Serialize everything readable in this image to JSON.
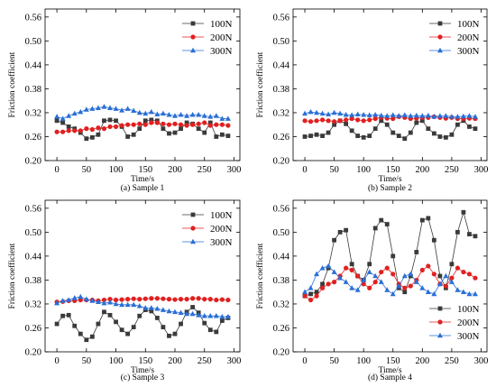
{
  "chart_data": [
    {
      "type": "line",
      "caption": "(a) Sample 1",
      "xlabel": "Time/s",
      "ylabel": "Friction coefficient",
      "xlim": [
        -20,
        310
      ],
      "ylim": [
        0.2,
        0.58
      ],
      "xticks": [
        0,
        50,
        100,
        150,
        200,
        250,
        300
      ],
      "yticks": [
        0.2,
        0.26,
        0.32,
        0.38,
        0.44,
        0.5,
        0.56
      ],
      "legend_position": "top-right",
      "x": [
        0,
        10,
        20,
        30,
        40,
        50,
        60,
        70,
        80,
        90,
        100,
        110,
        120,
        130,
        140,
        150,
        160,
        170,
        180,
        190,
        200,
        210,
        220,
        230,
        240,
        250,
        260,
        270,
        280,
        290
      ],
      "series": [
        {
          "name": "100N",
          "color": "#3a3a3a",
          "marker": "square",
          "values": [
            0.3,
            0.295,
            0.285,
            0.28,
            0.27,
            0.255,
            0.258,
            0.265,
            0.3,
            0.302,
            0.3,
            0.285,
            0.26,
            0.265,
            0.28,
            0.3,
            0.302,
            0.3,
            0.28,
            0.268,
            0.27,
            0.28,
            0.295,
            0.292,
            0.28,
            0.27,
            0.295,
            0.26,
            0.265,
            0.262
          ]
        },
        {
          "name": "200N",
          "color": "#e02020",
          "marker": "circle",
          "values": [
            0.272,
            0.272,
            0.275,
            0.275,
            0.275,
            0.28,
            0.278,
            0.282,
            0.28,
            0.285,
            0.285,
            0.288,
            0.29,
            0.29,
            0.292,
            0.29,
            0.295,
            0.295,
            0.292,
            0.29,
            0.292,
            0.29,
            0.288,
            0.29,
            0.292,
            0.295,
            0.288,
            0.29,
            0.29,
            0.288
          ]
        },
        {
          "name": "300N",
          "color": "#2a6fd6",
          "marker": "triangle",
          "values": [
            0.31,
            0.305,
            0.312,
            0.318,
            0.322,
            0.328,
            0.33,
            0.332,
            0.335,
            0.332,
            0.33,
            0.326,
            0.33,
            0.325,
            0.32,
            0.318,
            0.322,
            0.316,
            0.318,
            0.315,
            0.312,
            0.315,
            0.312,
            0.315,
            0.315,
            0.312,
            0.31,
            0.312,
            0.305,
            0.305
          ]
        }
      ]
    },
    {
      "type": "line",
      "caption": "(b) Sample 2",
      "xlabel": "Time/s",
      "ylabel": "Friction coefficient",
      "xlim": [
        -20,
        310
      ],
      "ylim": [
        0.2,
        0.58
      ],
      "xticks": [
        0,
        50,
        100,
        150,
        200,
        250,
        300
      ],
      "yticks": [
        0.2,
        0.26,
        0.32,
        0.38,
        0.44,
        0.5,
        0.56
      ],
      "legend_position": "top-right",
      "x": [
        0,
        10,
        20,
        30,
        40,
        50,
        60,
        70,
        80,
        90,
        100,
        110,
        120,
        130,
        140,
        150,
        160,
        170,
        180,
        190,
        200,
        210,
        220,
        230,
        240,
        250,
        260,
        270,
        280,
        290
      ],
      "series": [
        {
          "name": "100N",
          "color": "#3a3a3a",
          "marker": "square",
          "values": [
            0.26,
            0.262,
            0.265,
            0.262,
            0.27,
            0.29,
            0.3,
            0.292,
            0.275,
            0.262,
            0.258,
            0.262,
            0.28,
            0.3,
            0.29,
            0.27,
            0.262,
            0.255,
            0.27,
            0.295,
            0.3,
            0.28,
            0.268,
            0.26,
            0.258,
            0.265,
            0.29,
            0.3,
            0.285,
            0.28
          ]
        },
        {
          "name": "200N",
          "color": "#e02020",
          "marker": "circle",
          "values": [
            0.3,
            0.298,
            0.3,
            0.302,
            0.3,
            0.298,
            0.3,
            0.302,
            0.305,
            0.302,
            0.3,
            0.302,
            0.305,
            0.308,
            0.306,
            0.305,
            0.31,
            0.308,
            0.305,
            0.306,
            0.308,
            0.308,
            0.31,
            0.308,
            0.306,
            0.308,
            0.305,
            0.305,
            0.306,
            0.305
          ]
        },
        {
          "name": "300N",
          "color": "#2a6fd6",
          "marker": "triangle",
          "values": [
            0.318,
            0.322,
            0.32,
            0.318,
            0.316,
            0.32,
            0.318,
            0.315,
            0.314,
            0.316,
            0.315,
            0.314,
            0.315,
            0.313,
            0.312,
            0.314,
            0.312,
            0.314,
            0.312,
            0.313,
            0.312,
            0.313,
            0.31,
            0.312,
            0.312,
            0.31,
            0.31,
            0.311,
            0.312,
            0.31
          ]
        }
      ]
    },
    {
      "type": "line",
      "caption": "(c) Sample 3",
      "xlabel": "Time/s",
      "ylabel": "Friction coefficient",
      "xlim": [
        -20,
        310
      ],
      "ylim": [
        0.2,
        0.58
      ],
      "xticks": [
        0,
        50,
        100,
        150,
        200,
        250,
        300
      ],
      "yticks": [
        0.2,
        0.26,
        0.32,
        0.38,
        0.44,
        0.5,
        0.56
      ],
      "legend_position": "top-right",
      "x": [
        0,
        10,
        20,
        30,
        40,
        50,
        60,
        70,
        80,
        90,
        100,
        110,
        120,
        130,
        140,
        150,
        160,
        170,
        180,
        190,
        200,
        210,
        220,
        230,
        240,
        250,
        260,
        270,
        280,
        290
      ],
      "series": [
        {
          "name": "100N",
          "color": "#3a3a3a",
          "marker": "square",
          "values": [
            0.27,
            0.29,
            0.292,
            0.265,
            0.245,
            0.23,
            0.238,
            0.27,
            0.3,
            0.292,
            0.275,
            0.255,
            0.245,
            0.262,
            0.29,
            0.305,
            0.302,
            0.285,
            0.262,
            0.24,
            0.245,
            0.27,
            0.3,
            0.312,
            0.298,
            0.272,
            0.255,
            0.25,
            0.278,
            0.285
          ]
        },
        {
          "name": "200N",
          "color": "#e02020",
          "marker": "circle",
          "values": [
            0.325,
            0.326,
            0.328,
            0.328,
            0.33,
            0.33,
            0.33,
            0.328,
            0.33,
            0.332,
            0.33,
            0.331,
            0.332,
            0.333,
            0.332,
            0.333,
            0.334,
            0.334,
            0.333,
            0.332,
            0.331,
            0.332,
            0.332,
            0.334,
            0.334,
            0.332,
            0.332,
            0.33,
            0.331,
            0.33
          ]
        },
        {
          "name": "300N",
          "color": "#2a6fd6",
          "marker": "triangle",
          "values": [
            0.322,
            0.328,
            0.33,
            0.335,
            0.338,
            0.332,
            0.328,
            0.325,
            0.322,
            0.324,
            0.32,
            0.318,
            0.318,
            0.318,
            0.315,
            0.31,
            0.31,
            0.308,
            0.305,
            0.302,
            0.3,
            0.298,
            0.295,
            0.295,
            0.292,
            0.29,
            0.29,
            0.29,
            0.288,
            0.288
          ]
        }
      ]
    },
    {
      "type": "line",
      "caption": "(d) Sample 4",
      "xlabel": "Time/s",
      "ylabel": "Friction coefficient",
      "xlim": [
        -20,
        310
      ],
      "ylim": [
        0.2,
        0.58
      ],
      "xticks": [
        0,
        50,
        100,
        150,
        200,
        250,
        300
      ],
      "yticks": [
        0.2,
        0.26,
        0.32,
        0.38,
        0.44,
        0.5,
        0.56
      ],
      "legend_position": "bottom-right",
      "x": [
        0,
        10,
        20,
        30,
        40,
        50,
        60,
        70,
        80,
        90,
        100,
        110,
        120,
        130,
        140,
        150,
        160,
        170,
        180,
        190,
        200,
        210,
        220,
        230,
        240,
        250,
        260,
        270,
        280,
        290
      ],
      "series": [
        {
          "name": "100N",
          "color": "#3a3a3a",
          "marker": "square",
          "values": [
            0.34,
            0.345,
            0.35,
            0.37,
            0.41,
            0.48,
            0.5,
            0.505,
            0.42,
            0.39,
            0.38,
            0.42,
            0.51,
            0.53,
            0.52,
            0.44,
            0.36,
            0.35,
            0.39,
            0.45,
            0.53,
            0.535,
            0.48,
            0.39,
            0.36,
            0.42,
            0.5,
            0.55,
            0.495,
            0.49
          ]
        },
        {
          "name": "200N",
          "color": "#e02020",
          "marker": "circle",
          "values": [
            0.34,
            0.33,
            0.34,
            0.36,
            0.37,
            0.375,
            0.39,
            0.41,
            0.405,
            0.39,
            0.37,
            0.36,
            0.375,
            0.4,
            0.41,
            0.395,
            0.37,
            0.36,
            0.365,
            0.38,
            0.405,
            0.415,
            0.395,
            0.37,
            0.365,
            0.385,
            0.41,
            0.4,
            0.395,
            0.385
          ]
        },
        {
          "name": "300N",
          "color": "#2a6fd6",
          "marker": "triangle",
          "values": [
            0.35,
            0.36,
            0.395,
            0.41,
            0.415,
            0.4,
            0.385,
            0.375,
            0.36,
            0.355,
            0.38,
            0.4,
            0.39,
            0.375,
            0.355,
            0.345,
            0.365,
            0.39,
            0.395,
            0.375,
            0.36,
            0.35,
            0.345,
            0.37,
            0.39,
            0.375,
            0.355,
            0.35,
            0.345,
            0.345
          ]
        }
      ]
    }
  ]
}
